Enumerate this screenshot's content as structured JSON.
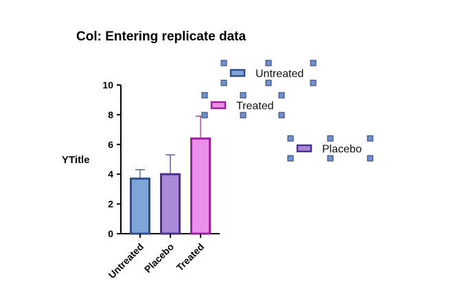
{
  "chart_data": {
    "type": "bar",
    "title": "Col: Entering replicate data",
    "ylabel": "YTitle",
    "xlabel": "",
    "ylim": [
      0,
      10
    ],
    "yticks": [
      0,
      2,
      4,
      6,
      8,
      10
    ],
    "grid": false,
    "categories": [
      "Untreated",
      "Placebo",
      "Treated"
    ],
    "values": [
      3.7,
      4.0,
      6.4
    ],
    "error_upper": [
      4.3,
      5.3,
      7.9
    ],
    "series_colors": [
      {
        "fill": "#7ea4d8",
        "stroke": "#2d4f8c"
      },
      {
        "fill": "#a98ad8",
        "stroke": "#4d2f8c"
      },
      {
        "fill": "#ea90ea",
        "stroke": "#9c1f9c"
      }
    ],
    "legend": [
      {
        "label": "Untreated",
        "fill": "#7ea4d8",
        "stroke": "#2d4f8c",
        "selected": true
      },
      {
        "label": "Treated",
        "fill": "#ea90ea",
        "stroke": "#9c1f9c",
        "selected": true
      },
      {
        "label": "Placebo",
        "fill": "#a98ad8",
        "stroke": "#4d2f8c",
        "selected": true
      }
    ]
  }
}
